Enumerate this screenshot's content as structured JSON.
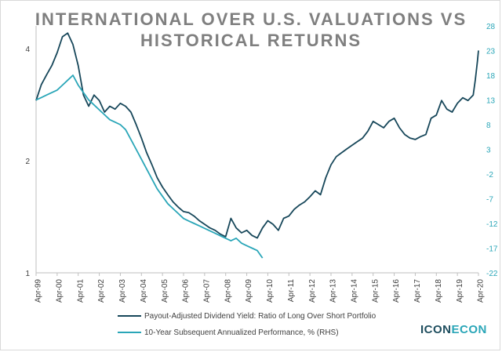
{
  "chart_data": {
    "type": "line",
    "title": "INTERNATIONAL OVER U.S. VALUATIONS VS HISTORICAL RETURNS",
    "title_lines": [
      "INTERNATIONAL OVER U.S. VALUATIONS VS",
      "HISTORICAL RETURNS"
    ],
    "x_ticks": [
      "Apr-99",
      "Apr-00",
      "Apr-01",
      "Apr-02",
      "Apr-03",
      "Apr-04",
      "Apr-05",
      "Apr-06",
      "Apr-07",
      "Apr-08",
      "Apr-09",
      "Apr-10",
      "Apr-11",
      "Apr-12",
      "Apr-13",
      "Apr-14",
      "Apr-15",
      "Apr-16",
      "Apr-17",
      "Apr-18",
      "Apr-19",
      "Apr-20"
    ],
    "left_axis": {
      "scale": "log",
      "ylim": [
        1,
        4.6
      ],
      "ticks": [
        "1",
        "2",
        "4"
      ],
      "tick_values": [
        1,
        2,
        4
      ]
    },
    "right_axis": {
      "ylim": [
        -22,
        28
      ],
      "ticks": [
        "-22",
        "-17",
        "-12",
        "-7",
        "-2",
        "3",
        "8",
        "13",
        "18",
        "23",
        "28"
      ]
    },
    "series": [
      {
        "name": "Payout-Adjusted Dividend Yield: Ratio of Long Over Short Portfolio",
        "axis": "left",
        "color": "#17475a",
        "points": [
          [
            1999.25,
            2.9
          ],
          [
            1999.5,
            3.2
          ],
          [
            1999.75,
            3.4
          ],
          [
            2000.0,
            3.6
          ],
          [
            2000.25,
            3.9
          ],
          [
            2000.5,
            4.3
          ],
          [
            2000.75,
            4.4
          ],
          [
            2001.0,
            4.1
          ],
          [
            2001.25,
            3.6
          ],
          [
            2001.5,
            3.0
          ],
          [
            2001.75,
            2.8
          ],
          [
            2002.0,
            3.0
          ],
          [
            2002.25,
            2.9
          ],
          [
            2002.5,
            2.7
          ],
          [
            2002.75,
            2.8
          ],
          [
            2003.0,
            2.75
          ],
          [
            2003.25,
            2.85
          ],
          [
            2003.5,
            2.8
          ],
          [
            2003.75,
            2.7
          ],
          [
            2004.0,
            2.5
          ],
          [
            2004.25,
            2.3
          ],
          [
            2004.5,
            2.1
          ],
          [
            2004.75,
            1.95
          ],
          [
            2005.0,
            1.8
          ],
          [
            2005.25,
            1.7
          ],
          [
            2005.5,
            1.62
          ],
          [
            2005.75,
            1.55
          ],
          [
            2006.0,
            1.5
          ],
          [
            2006.25,
            1.46
          ],
          [
            2006.5,
            1.45
          ],
          [
            2006.75,
            1.42
          ],
          [
            2007.0,
            1.38
          ],
          [
            2007.25,
            1.35
          ],
          [
            2007.5,
            1.32
          ],
          [
            2007.75,
            1.3
          ],
          [
            2008.0,
            1.27
          ],
          [
            2008.25,
            1.25
          ],
          [
            2008.5,
            1.4
          ],
          [
            2008.75,
            1.32
          ],
          [
            2009.0,
            1.28
          ],
          [
            2009.25,
            1.3
          ],
          [
            2009.5,
            1.26
          ],
          [
            2009.75,
            1.24
          ],
          [
            2010.0,
            1.32
          ],
          [
            2010.25,
            1.38
          ],
          [
            2010.5,
            1.35
          ],
          [
            2010.75,
            1.3
          ],
          [
            2011.0,
            1.4
          ],
          [
            2011.25,
            1.42
          ],
          [
            2011.5,
            1.48
          ],
          [
            2011.75,
            1.52
          ],
          [
            2012.0,
            1.55
          ],
          [
            2012.25,
            1.6
          ],
          [
            2012.5,
            1.66
          ],
          [
            2012.75,
            1.62
          ],
          [
            2013.0,
            1.8
          ],
          [
            2013.25,
            1.95
          ],
          [
            2013.5,
            2.05
          ],
          [
            2013.75,
            2.1
          ],
          [
            2014.0,
            2.15
          ],
          [
            2014.25,
            2.2
          ],
          [
            2014.5,
            2.25
          ],
          [
            2014.75,
            2.3
          ],
          [
            2015.0,
            2.4
          ],
          [
            2015.25,
            2.55
          ],
          [
            2015.5,
            2.5
          ],
          [
            2015.75,
            2.45
          ],
          [
            2016.0,
            2.55
          ],
          [
            2016.25,
            2.6
          ],
          [
            2016.5,
            2.45
          ],
          [
            2016.75,
            2.35
          ],
          [
            2017.0,
            2.3
          ],
          [
            2017.25,
            2.28
          ],
          [
            2017.5,
            2.32
          ],
          [
            2017.75,
            2.35
          ],
          [
            2018.0,
            2.6
          ],
          [
            2018.25,
            2.65
          ],
          [
            2018.5,
            2.9
          ],
          [
            2018.75,
            2.75
          ],
          [
            2019.0,
            2.7
          ],
          [
            2019.25,
            2.85
          ],
          [
            2019.5,
            2.95
          ],
          [
            2019.75,
            2.9
          ],
          [
            2020.0,
            3.0
          ],
          [
            2020.1,
            3.3
          ],
          [
            2020.2,
            3.7
          ],
          [
            2020.25,
            3.95
          ]
        ]
      },
      {
        "name": "10-Year Subsequent Annualized Performance, % (RHS)",
        "axis": "right",
        "color": "#2aa6b8",
        "points": [
          [
            1999.25,
            13
          ],
          [
            1999.5,
            13.5
          ],
          [
            1999.75,
            14
          ],
          [
            2000.0,
            14.5
          ],
          [
            2000.25,
            15
          ],
          [
            2000.5,
            16
          ],
          [
            2000.75,
            17
          ],
          [
            2001.0,
            18
          ],
          [
            2001.25,
            16
          ],
          [
            2001.5,
            14.5
          ],
          [
            2001.75,
            13
          ],
          [
            2002.0,
            12
          ],
          [
            2002.25,
            11
          ],
          [
            2002.5,
            10
          ],
          [
            2002.75,
            9
          ],
          [
            2003.0,
            8.5
          ],
          [
            2003.25,
            8
          ],
          [
            2003.5,
            7
          ],
          [
            2003.75,
            5
          ],
          [
            2004.0,
            3
          ],
          [
            2004.25,
            1
          ],
          [
            2004.5,
            -1
          ],
          [
            2004.75,
            -3
          ],
          [
            2005.0,
            -5
          ],
          [
            2005.25,
            -6.5
          ],
          [
            2005.5,
            -8
          ],
          [
            2005.75,
            -9
          ],
          [
            2006.0,
            -10
          ],
          [
            2006.25,
            -11
          ],
          [
            2006.5,
            -11.5
          ],
          [
            2006.75,
            -12
          ],
          [
            2007.0,
            -12.5
          ],
          [
            2007.25,
            -13
          ],
          [
            2007.5,
            -13.5
          ],
          [
            2007.75,
            -14
          ],
          [
            2008.0,
            -14.5
          ],
          [
            2008.25,
            -15
          ],
          [
            2008.5,
            -15.5
          ],
          [
            2008.75,
            -15
          ],
          [
            2009.0,
            -16
          ],
          [
            2009.25,
            -16.5
          ],
          [
            2009.5,
            -17
          ],
          [
            2009.75,
            -17.5
          ],
          [
            2010.0,
            -19
          ]
        ]
      }
    ],
    "legend": [
      "Payout-Adjusted Dividend Yield: Ratio of Long Over Short Portfolio",
      "10-Year Subsequent Annualized Performance, % (RHS)"
    ],
    "legend_position": "bottom",
    "grid": false
  },
  "logo": {
    "part1": "ICON",
    "part2": "ECON"
  }
}
